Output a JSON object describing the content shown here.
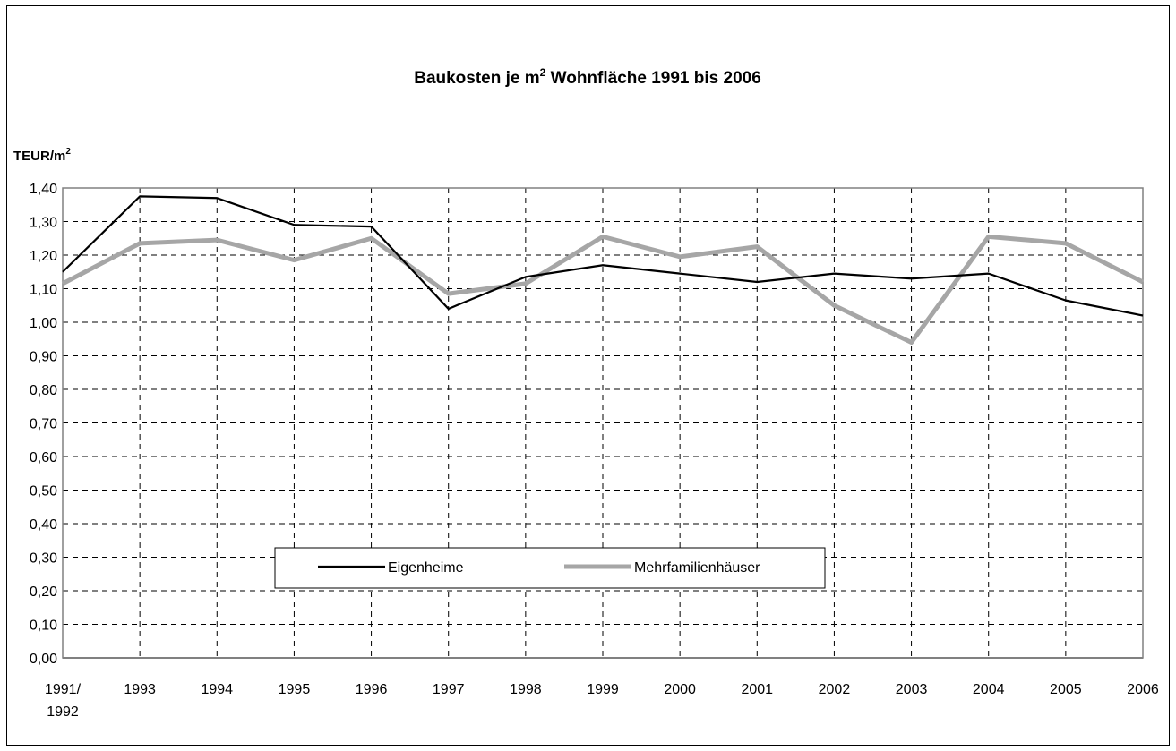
{
  "chart_data": {
    "type": "line",
    "title": "Baukosten je m",
    "title_sup": "2",
    "title_rest": " Wohnfläche 1991 bis 2006",
    "unit_label": "TEUR/m",
    "unit_sup": "2",
    "xlabel": "",
    "ylabel": "TEUR/m2",
    "ylim": [
      0,
      1.4
    ],
    "y_step": 0.1,
    "y_ticks": [
      "0,00",
      "0,10",
      "0,20",
      "0,30",
      "0,40",
      "0,50",
      "0,60",
      "0,70",
      "0,80",
      "0,90",
      "1,00",
      "1,10",
      "1,20",
      "1,30",
      "1,40"
    ],
    "categories": [
      [
        "1991/",
        "1992"
      ],
      [
        "1993"
      ],
      [
        "1994"
      ],
      [
        "1995"
      ],
      [
        "1996"
      ],
      [
        "1997"
      ],
      [
        "1998"
      ],
      [
        "1999"
      ],
      [
        "2000"
      ],
      [
        "2001"
      ],
      [
        "2002"
      ],
      [
        "2003"
      ],
      [
        "2004"
      ],
      [
        "2005"
      ],
      [
        "2006"
      ]
    ],
    "grid": true,
    "legend_position": "bottom-center",
    "series": [
      {
        "name": "Eigenheime",
        "color": "#000000",
        "values": [
          1.15,
          1.375,
          1.37,
          1.29,
          1.285,
          1.04,
          1.135,
          1.17,
          1.145,
          1.12,
          1.145,
          1.13,
          1.145,
          1.065,
          1.02
        ]
      },
      {
        "name": "Mehrfamilienhäuser",
        "color": "#a6a6a6",
        "values": [
          1.115,
          1.235,
          1.245,
          1.185,
          1.25,
          1.085,
          1.115,
          1.255,
          1.195,
          1.225,
          1.05,
          0.94,
          1.255,
          1.235,
          1.12
        ]
      }
    ]
  }
}
